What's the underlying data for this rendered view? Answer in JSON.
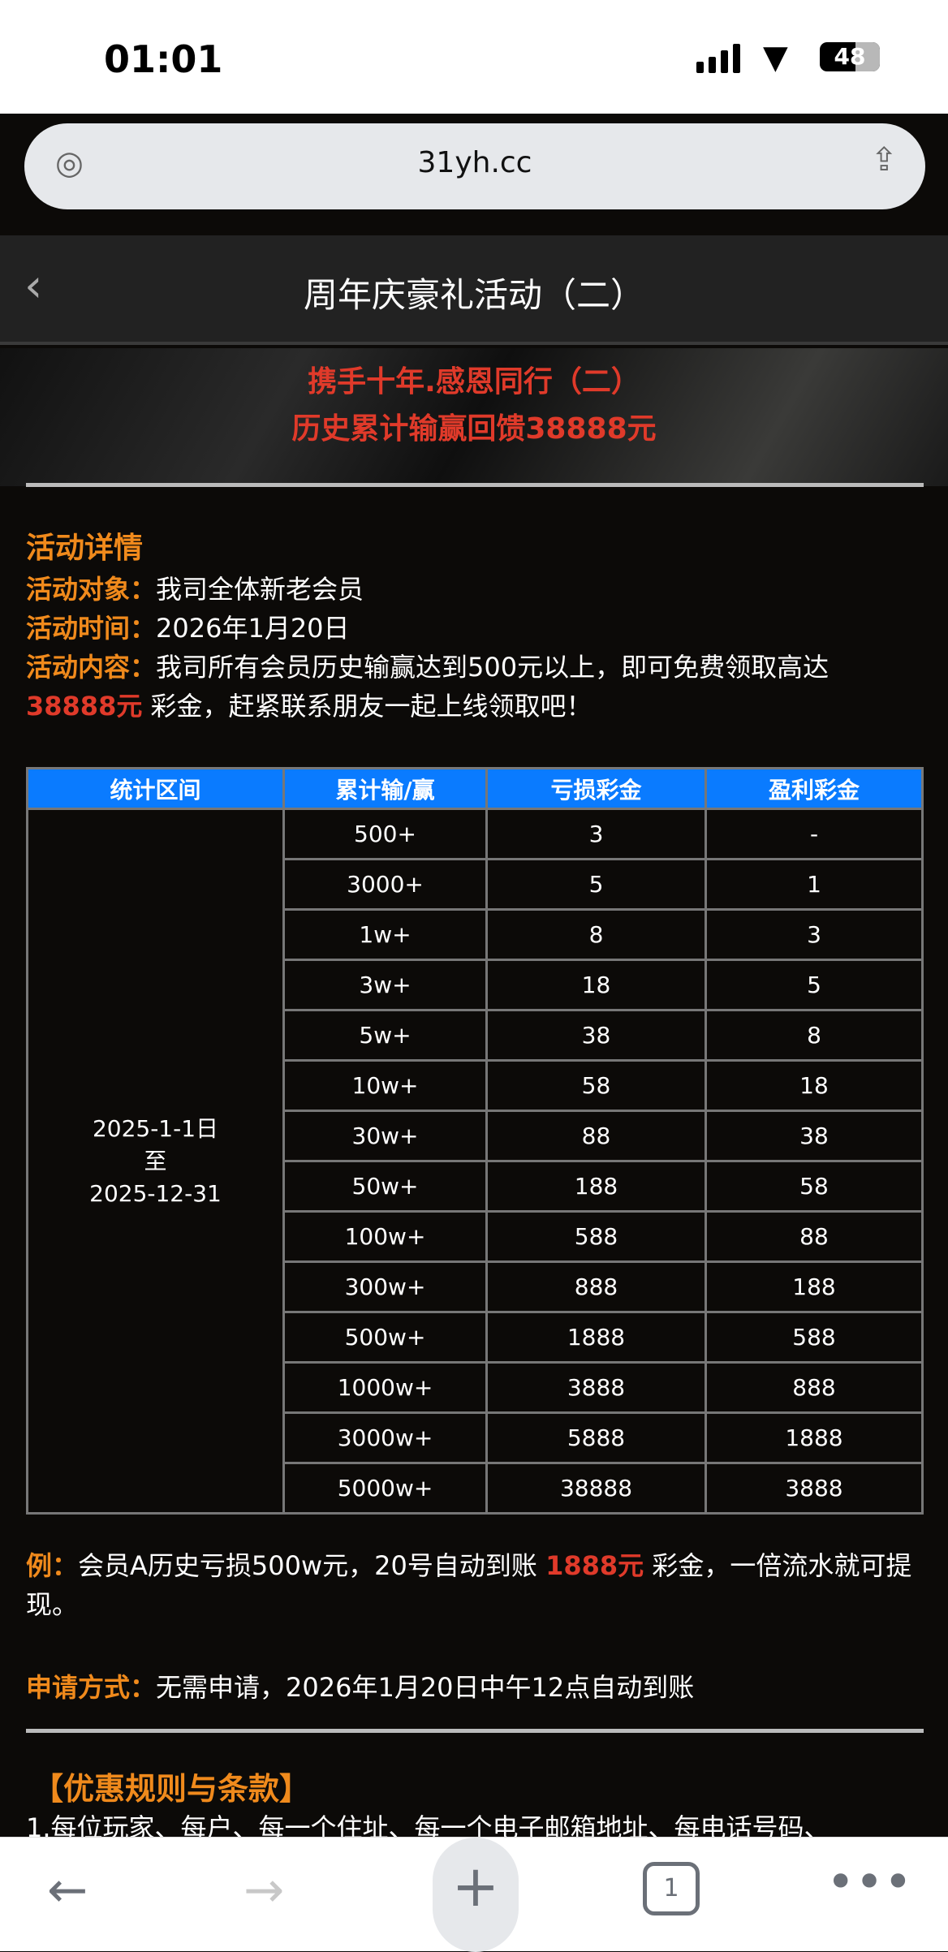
{
  "status": {
    "time": "01:01",
    "battery": "48"
  },
  "browser": {
    "url": "31yh.cc",
    "tab_count": "1"
  },
  "header": {
    "title": "周年庆豪礼活动（二）"
  },
  "banner": {
    "line1": "携手十年.感恩同行（二）",
    "line2": "历史累计输赢回馈38888元"
  },
  "details": {
    "heading": "活动详情",
    "target_label": "活动对象：",
    "target": "我司全体新老会员",
    "time_label": "活动时间：",
    "time": "2026年1月20日",
    "content_label": "活动内容：",
    "content_pre": "我司所有会员历史输赢达到500元以上，即可免费领取高达 ",
    "content_amount": "38888元",
    "content_post": " 彩金，赶紧联系朋友一起上线领取吧！"
  },
  "table": {
    "headers": [
      "统计区间",
      "累计输/赢",
      "亏损彩金",
      "盈利彩金"
    ],
    "period": [
      "2025-1-1日",
      "至",
      "2025-12-31"
    ],
    "rows": [
      [
        "500+",
        "3",
        "-"
      ],
      [
        "3000+",
        "5",
        "1"
      ],
      [
        "1w+",
        "8",
        "3"
      ],
      [
        "3w+",
        "18",
        "5"
      ],
      [
        "5w+",
        "38",
        "8"
      ],
      [
        "10w+",
        "58",
        "18"
      ],
      [
        "30w+",
        "88",
        "38"
      ],
      [
        "50w+",
        "188",
        "58"
      ],
      [
        "100w+",
        "588",
        "88"
      ],
      [
        "300w+",
        "888",
        "188"
      ],
      [
        "500w+",
        "1888",
        "588"
      ],
      [
        "1000w+",
        "3888",
        "888"
      ],
      [
        "3000w+",
        "5888",
        "1888"
      ],
      [
        "5000w+",
        "38888",
        "3888"
      ]
    ]
  },
  "example": {
    "label": "例：",
    "pre": "会员A历史亏损500w元，20号自动到账 ",
    "amount": "1888元",
    "post": " 彩金，一倍流水就可提现。"
  },
  "apply": {
    "label": "申请方式：",
    "text": "无需申请，2026年1月20日中午12点自动到账"
  },
  "terms": {
    "heading": "【优惠规则与条款】",
    "line1": "1.每位玩家、每户、每一个住址、每一个电子邮箱地址、每电话号码、"
  }
}
